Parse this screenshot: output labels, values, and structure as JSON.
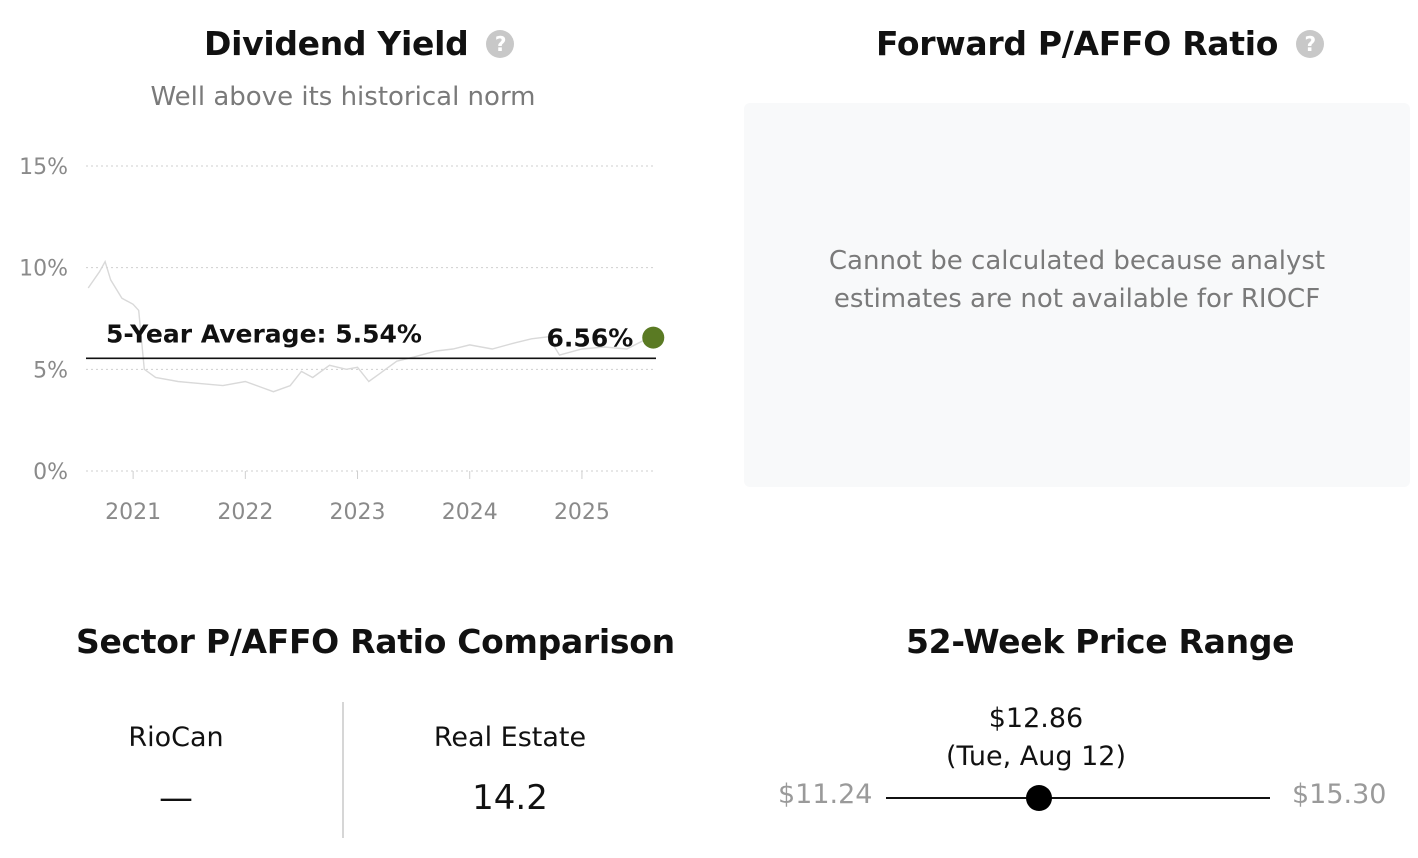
{
  "dividend_yield": {
    "title": "Dividend Yield",
    "subtitle": "Well above its historical norm",
    "help_icon": "question-circle-icon",
    "average_label": "5-Year Average: 5.54%",
    "current_label": "6.56%",
    "current_dot_color": "#5a7a23",
    "line_color": "#d9d9d9"
  },
  "chart_data": {
    "type": "line",
    "title": "",
    "xlabel": "",
    "ylabel": "",
    "ylim": [
      0,
      15
    ],
    "y_ticks": [
      "15%",
      "10%",
      "5%",
      "0%"
    ],
    "x_ticks": [
      "2021",
      "2022",
      "2023",
      "2024",
      "2025"
    ],
    "grid": true,
    "series": [
      {
        "x": [
          2020.6,
          2020.7,
          2020.75,
          2020.8,
          2020.9,
          2021.0,
          2021.05,
          2021.1,
          2021.2,
          2021.4,
          2021.6,
          2021.8,
          2022.0,
          2022.15,
          2022.25,
          2022.4,
          2022.5,
          2022.6,
          2022.75,
          2022.9,
          2023.0,
          2023.1,
          2023.2,
          2023.35,
          2023.5,
          2023.7,
          2023.85,
          2024.0,
          2024.2,
          2024.4,
          2024.55,
          2024.7,
          2024.8,
          2025.0,
          2025.2,
          2025.4,
          2025.6
        ],
        "values": [
          9.0,
          9.8,
          10.3,
          9.4,
          8.5,
          8.2,
          7.9,
          5.0,
          4.6,
          4.4,
          4.3,
          4.2,
          4.4,
          4.1,
          3.9,
          4.2,
          4.9,
          4.6,
          5.2,
          5.0,
          5.1,
          4.4,
          4.8,
          5.4,
          5.6,
          5.9,
          6.0,
          6.2,
          6.0,
          6.3,
          6.5,
          6.6,
          5.7,
          6.0,
          6.1,
          6.0,
          6.56
        ]
      }
    ],
    "reference_lines": [
      {
        "label": "5-Year Average: 5.54%",
        "value": 5.54
      }
    ],
    "annotations": [
      {
        "label": "6.56%",
        "x": 2025.6,
        "value": 6.56
      }
    ]
  },
  "forward_pafo": {
    "title": "Forward P/AFFO Ratio",
    "help_icon": "question-circle-icon",
    "message": "Cannot be calculated because analyst estimates are not available for RIOCF"
  },
  "sector": {
    "title": "Sector P/AFFO Ratio Comparison",
    "left_label": "RioCan",
    "left_value": "—",
    "right_label": "Real Estate",
    "right_value": "14.2"
  },
  "price_range": {
    "title": "52-Week Price Range",
    "current_price": "$12.86",
    "current_date": "(Tue, Aug 12)",
    "low": "$11.24",
    "high": "$15.30",
    "low_value": 11.24,
    "high_value": 15.3,
    "current_value": 12.86
  }
}
